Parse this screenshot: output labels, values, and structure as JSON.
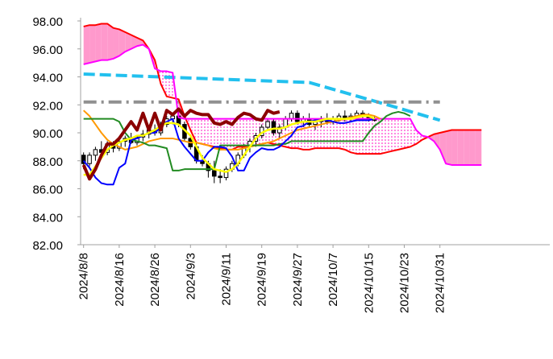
{
  "chart_data": {
    "type": "line",
    "title": "",
    "xlabel": "",
    "ylabel": "",
    "ylim": [
      82,
      98
    ],
    "yticks": [
      "82.00",
      "84.00",
      "86.00",
      "88.00",
      "90.00",
      "92.00",
      "94.00",
      "96.00",
      "98.00"
    ],
    "xtick_labels": [
      "2024/8/8",
      "2024/8/16",
      "2024/8/26",
      "2024/9/3",
      "2024/9/11",
      "2024/9/19",
      "2024/9/27",
      "2024/10/7",
      "2024/10/15",
      "2024/10/23",
      "2024/10/31"
    ],
    "grid": false,
    "legend": "none",
    "n_slots": 79,
    "colors": {
      "axis": "#a0a0a0",
      "candle_up": "#ffffff",
      "candle_down": "#000000",
      "cloud_bull": "#ff99cc",
      "cloud_bear": "#ff66cc",
      "span_a": "#ff0000",
      "span_b": "#ff00ff",
      "tenkan": "#0000ff",
      "kijun": "#228b22",
      "chikou": "#8b0000",
      "ma_short": "#ffff00",
      "ma_long": "#ff9900",
      "trend_cyan": "#22c0ee",
      "trend_gray": "#909090"
    },
    "candles": [
      {
        "o": 88.4,
        "h": 88.6,
        "l": 87.4,
        "c": 87.8
      },
      {
        "o": 87.8,
        "h": 88.6,
        "l": 87.6,
        "c": 88.4
      },
      {
        "o": 88.4,
        "h": 89.0,
        "l": 88.0,
        "c": 88.8
      },
      {
        "o": 88.8,
        "h": 89.4,
        "l": 88.2,
        "c": 88.6
      },
      {
        "o": 88.6,
        "h": 89.4,
        "l": 88.4,
        "c": 89.2
      },
      {
        "o": 89.2,
        "h": 89.4,
        "l": 88.6,
        "c": 88.9
      },
      {
        "o": 88.9,
        "h": 89.6,
        "l": 88.7,
        "c": 89.4
      },
      {
        "o": 89.4,
        "h": 89.8,
        "l": 89.0,
        "c": 89.6
      },
      {
        "o": 89.6,
        "h": 90.0,
        "l": 89.2,
        "c": 89.3
      },
      {
        "o": 89.3,
        "h": 89.8,
        "l": 89.1,
        "c": 89.7
      },
      {
        "o": 89.7,
        "h": 90.2,
        "l": 89.4,
        "c": 89.9
      },
      {
        "o": 89.9,
        "h": 90.4,
        "l": 89.6,
        "c": 90.2
      },
      {
        "o": 90.2,
        "h": 90.6,
        "l": 89.8,
        "c": 90.0
      },
      {
        "o": 90.0,
        "h": 90.8,
        "l": 89.8,
        "c": 90.6
      },
      {
        "o": 90.6,
        "h": 91.2,
        "l": 90.4,
        "c": 91.0
      },
      {
        "o": 91.0,
        "h": 91.4,
        "l": 90.6,
        "c": 91.2
      },
      {
        "o": 91.2,
        "h": 91.6,
        "l": 90.4,
        "c": 90.6
      },
      {
        "o": 90.6,
        "h": 90.8,
        "l": 89.4,
        "c": 89.6
      },
      {
        "o": 89.6,
        "h": 89.8,
        "l": 88.8,
        "c": 89.0
      },
      {
        "o": 89.0,
        "h": 89.4,
        "l": 87.8,
        "c": 88.0
      },
      {
        "o": 88.0,
        "h": 88.4,
        "l": 87.6,
        "c": 87.8
      },
      {
        "o": 87.8,
        "h": 88.0,
        "l": 86.8,
        "c": 87.3
      },
      {
        "o": 87.3,
        "h": 88.0,
        "l": 86.4,
        "c": 86.9
      },
      {
        "o": 86.9,
        "h": 87.4,
        "l": 86.4,
        "c": 86.8
      },
      {
        "o": 86.8,
        "h": 87.6,
        "l": 86.6,
        "c": 87.4
      },
      {
        "o": 87.4,
        "h": 88.0,
        "l": 87.2,
        "c": 87.8
      },
      {
        "o": 87.8,
        "h": 88.6,
        "l": 87.6,
        "c": 88.4
      },
      {
        "o": 88.4,
        "h": 89.2,
        "l": 88.2,
        "c": 89.0
      },
      {
        "o": 89.0,
        "h": 89.6,
        "l": 88.6,
        "c": 89.4
      },
      {
        "o": 89.4,
        "h": 90.0,
        "l": 89.0,
        "c": 89.8
      },
      {
        "o": 89.8,
        "h": 90.6,
        "l": 89.6,
        "c": 90.4
      },
      {
        "o": 90.4,
        "h": 91.0,
        "l": 90.2,
        "c": 90.8
      },
      {
        "o": 90.8,
        "h": 91.0,
        "l": 89.8,
        "c": 90.0
      },
      {
        "o": 90.0,
        "h": 90.6,
        "l": 89.6,
        "c": 90.4
      },
      {
        "o": 90.4,
        "h": 91.2,
        "l": 90.2,
        "c": 91.0
      },
      {
        "o": 91.0,
        "h": 91.6,
        "l": 90.8,
        "c": 91.4
      },
      {
        "o": 91.4,
        "h": 91.6,
        "l": 90.6,
        "c": 90.8
      },
      {
        "o": 90.8,
        "h": 91.2,
        "l": 90.4,
        "c": 91.0
      },
      {
        "o": 91.0,
        "h": 91.4,
        "l": 90.4,
        "c": 90.6
      },
      {
        "o": 90.6,
        "h": 91.0,
        "l": 90.2,
        "c": 90.8
      },
      {
        "o": 90.8,
        "h": 91.2,
        "l": 90.4,
        "c": 91.0
      },
      {
        "o": 91.0,
        "h": 91.4,
        "l": 90.6,
        "c": 90.8
      },
      {
        "o": 90.8,
        "h": 91.2,
        "l": 90.6,
        "c": 91.0
      },
      {
        "o": 91.0,
        "h": 91.4,
        "l": 90.8,
        "c": 91.2
      },
      {
        "o": 91.2,
        "h": 91.6,
        "l": 90.8,
        "c": 91.0
      },
      {
        "o": 91.0,
        "h": 91.4,
        "l": 90.8,
        "c": 91.2
      },
      {
        "o": 91.2,
        "h": 91.6,
        "l": 91.0,
        "c": 91.4
      },
      {
        "o": 91.4,
        "h": 91.6,
        "l": 91.0,
        "c": 91.2
      },
      {
        "o": 91.2,
        "h": 91.4,
        "l": 90.8,
        "c": 91.0
      },
      {
        "o": 91.0,
        "h": 91.2,
        "l": 90.8,
        "c": 90.9
      }
    ],
    "series": [
      {
        "key": "span_a",
        "start": 0,
        "values": [
          97.6,
          97.7,
          97.7,
          97.8,
          97.8,
          97.5,
          97.4,
          97.2,
          97.0,
          96.8,
          96.6,
          96.0,
          95.2,
          93.5,
          92.6,
          92.5,
          92.4,
          91.2,
          90.2,
          89.3,
          89.2,
          89.1,
          89.0,
          88.9,
          88.8,
          88.8,
          89.0,
          89.0,
          89.1,
          89.1,
          89.2,
          89.3,
          89.2,
          89.1,
          89.0,
          88.9,
          88.9,
          88.8,
          88.8,
          88.9,
          88.9,
          88.9,
          88.9,
          88.9,
          88.8,
          88.6,
          88.5,
          88.5,
          88.5,
          88.5,
          88.5,
          88.6,
          88.7,
          88.8,
          88.9,
          89.0,
          89.2,
          89.5,
          89.7,
          89.9,
          90.0,
          90.1,
          90.2,
          90.2,
          90.2,
          90.2,
          90.2,
          90.2
        ]
      },
      {
        "key": "span_b",
        "start": 0,
        "values": [
          94.9,
          95.0,
          95.1,
          95.2,
          95.2,
          95.3,
          95.5,
          95.8,
          96.0,
          96.2,
          96.3,
          96.0,
          94.6,
          94.4,
          94.4,
          94.3,
          91.1,
          91.0,
          91.0,
          91.0,
          91.0,
          91.0,
          91.0,
          91.0,
          91.0,
          91.0,
          91.0,
          91.0,
          91.0,
          91.0,
          91.0,
          91.0,
          91.0,
          91.0,
          91.0,
          91.0,
          91.0,
          91.0,
          91.0,
          91.0,
          91.0,
          91.0,
          91.0,
          91.0,
          91.0,
          91.0,
          91.0,
          91.0,
          91.0,
          91.0,
          91.0,
          91.0,
          91.0,
          91.0,
          91.0,
          91.0,
          90.2,
          89.8,
          89.7,
          89.4,
          88.8,
          87.8,
          87.7,
          87.7,
          87.7,
          87.7,
          87.7,
          87.7
        ]
      },
      {
        "key": "tenkan",
        "start": 0,
        "values": [
          88.0,
          87.5,
          86.8,
          86.4,
          86.3,
          86.3,
          87.5,
          87.8,
          89.5,
          89.6,
          89.8,
          90.0,
          90.0,
          90.4,
          90.8,
          91.0,
          89.6,
          89.0,
          88.5,
          88.0,
          88.0,
          88.6,
          89.0,
          89.0,
          88.9,
          88.3,
          87.3,
          87.3,
          88.2,
          88.6,
          88.9,
          88.8,
          88.8,
          89.0,
          89.4,
          89.8,
          90.4,
          90.5,
          90.8,
          90.9,
          90.9,
          90.9,
          90.8,
          90.7,
          90.7,
          90.8,
          90.9,
          90.9,
          90.9,
          91.0
        ]
      },
      {
        "key": "kijun",
        "start": 0,
        "values": [
          91.0,
          91.0,
          91.0,
          91.0,
          91.0,
          91.0,
          90.8,
          90.0,
          89.5,
          89.4,
          89.3,
          89.1,
          89.1,
          89.0,
          88.9,
          87.3,
          87.3,
          87.4,
          87.4,
          87.4,
          87.4,
          87.4,
          87.4,
          89.1,
          89.1,
          89.1,
          89.1,
          89.1,
          89.1,
          89.1,
          89.1,
          89.1,
          89.1,
          89.2,
          89.2,
          89.4,
          89.4,
          89.4,
          89.4,
          89.4,
          89.4,
          89.4,
          89.4,
          89.4,
          89.4,
          89.4,
          89.4,
          89.4,
          90.0,
          90.5,
          90.8,
          91.2,
          91.4,
          91.5,
          91.4,
          91.2
        ]
      },
      {
        "key": "chikou",
        "start": 0,
        "values": [
          87.7,
          86.7,
          87.4,
          88.4,
          89.2,
          89.2,
          89.6,
          90.2,
          90.8,
          90.2,
          91.4,
          90.2,
          91.4,
          90.2,
          91.6,
          91.3,
          91.7,
          91.2,
          91.6,
          91.4,
          91.3,
          91.3,
          90.7,
          90.6,
          90.8,
          90.6,
          91.1,
          91.4,
          91.3,
          91.0,
          90.9,
          91.6,
          91.4,
          91.5
        ]
      },
      {
        "key": "ma_short",
        "start": 0,
        "values": [
          87.0,
          87.0,
          87.6,
          88.2,
          88.8,
          89.1,
          89.3,
          89.5,
          89.6,
          89.8,
          89.8,
          90.0,
          90.2,
          90.5,
          90.7,
          90.7,
          90.6,
          90.2,
          89.8,
          89.0,
          88.2,
          87.8,
          87.4,
          87.3,
          87.2,
          87.4,
          87.8,
          88.4,
          89.0,
          89.6,
          90.0,
          90.2,
          90.3,
          90.3,
          90.4,
          90.6,
          90.7,
          90.8,
          90.8,
          90.8,
          90.9,
          91.0,
          91.0,
          91.0,
          91.0,
          91.0,
          91.1,
          91.2,
          91.2,
          91.0
        ]
      },
      {
        "key": "ma_long",
        "start": 0,
        "values": [
          91.6,
          91.2,
          90.6,
          90.0,
          89.5,
          89.2,
          89.0,
          88.8,
          88.9,
          89.0,
          89.2,
          89.4,
          89.5,
          89.6,
          89.6,
          89.6,
          89.5,
          89.4,
          89.3,
          89.3,
          89.2,
          89.1,
          88.9,
          88.8,
          88.8,
          88.8,
          88.8,
          88.9,
          89.0,
          89.1,
          89.2,
          89.3,
          89.4,
          89.6,
          89.8,
          90.0,
          90.2,
          90.3,
          90.4,
          90.5,
          90.6,
          90.7,
          90.8,
          90.9,
          91.0,
          91.1,
          91.2,
          91.3,
          91.3,
          91.2,
          91.0
        ]
      }
    ],
    "trendlines": [
      {
        "key": "trend_cyan",
        "x": [
          0,
          38,
          52,
          60
        ],
        "y": [
          94.2,
          93.6,
          91.9,
          90.9
        ]
      },
      {
        "key": "trend_gray",
        "x": [
          0,
          60
        ],
        "y": [
          92.2,
          92.2
        ]
      }
    ]
  }
}
